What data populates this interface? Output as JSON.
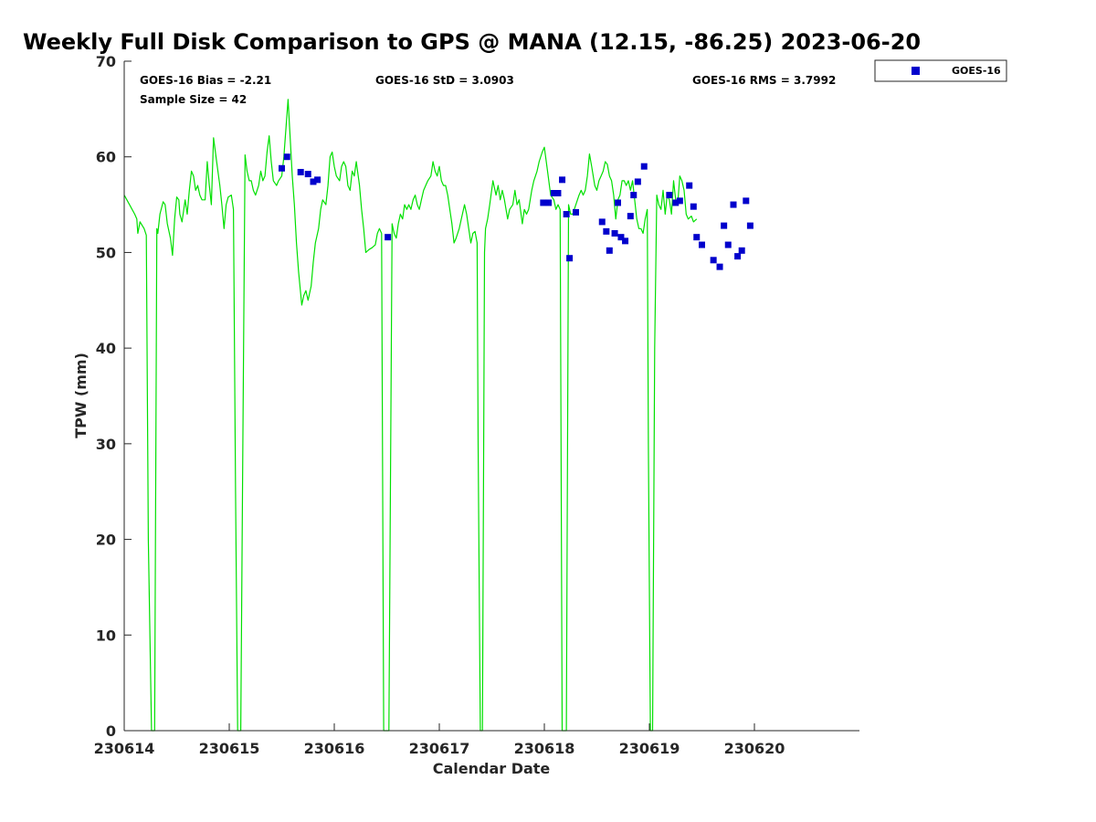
{
  "chart_data": {
    "type": "scatter",
    "title": "Weekly Full Disk Comparison to GPS @ MANA (12.15, -86.25) 2023-06-20",
    "xlabel": "Calendar Date",
    "ylabel": "TPW (mm)",
    "xlim": [
      0,
      7
    ],
    "ylim": [
      0,
      70
    ],
    "x_ticks": [
      {
        "value": 0,
        "label": "230614"
      },
      {
        "value": 1,
        "label": "230615"
      },
      {
        "value": 2,
        "label": "230616"
      },
      {
        "value": 3,
        "label": "230617"
      },
      {
        "value": 4,
        "label": "230618"
      },
      {
        "value": 5,
        "label": "230619"
      },
      {
        "value": 6,
        "label": "230620"
      }
    ],
    "y_ticks": [
      0,
      10,
      20,
      30,
      40,
      50,
      60,
      70
    ],
    "stats": {
      "bias": "GOES-16 Bias = -2.21",
      "std": "GOES-16 StD = 3.0903",
      "rms": "GOES-16 RMS = 3.7992",
      "sample": "Sample Size = 42"
    },
    "legend": {
      "position": "top-right-outside",
      "entries": [
        {
          "name": "GOES-16",
          "color": "#0000cc",
          "marker": "square"
        }
      ]
    },
    "gps_line_color": "#00e000",
    "gps_series": [
      [
        0.0,
        56.0
      ],
      [
        0.05,
        55.0
      ],
      [
        0.1,
        54.0
      ],
      [
        0.12,
        53.5
      ],
      [
        0.13,
        52.0
      ],
      [
        0.15,
        53.2
      ],
      [
        0.19,
        52.5
      ],
      [
        0.21,
        51.8
      ],
      [
        0.23,
        20.0
      ],
      [
        0.26,
        0
      ],
      [
        0.29,
        0
      ],
      [
        0.31,
        52.5
      ],
      [
        0.32,
        52.0
      ],
      [
        0.34,
        54.0
      ],
      [
        0.37,
        55.3
      ],
      [
        0.39,
        55.0
      ],
      [
        0.41,
        53.0
      ],
      [
        0.44,
        51.5
      ],
      [
        0.46,
        49.7
      ],
      [
        0.48,
        53.5
      ],
      [
        0.5,
        55.8
      ],
      [
        0.52,
        55.5
      ],
      [
        0.53,
        54.0
      ],
      [
        0.55,
        53.2
      ],
      [
        0.58,
        55.5
      ],
      [
        0.6,
        54.0
      ],
      [
        0.62,
        56.5
      ],
      [
        0.64,
        58.5
      ],
      [
        0.66,
        58.0
      ],
      [
        0.68,
        56.5
      ],
      [
        0.7,
        57.0
      ],
      [
        0.72,
        56.0
      ],
      [
        0.74,
        55.5
      ],
      [
        0.77,
        55.5
      ],
      [
        0.79,
        59.5
      ],
      [
        0.81,
        57.0
      ],
      [
        0.83,
        55.0
      ],
      [
        0.85,
        62.0
      ],
      [
        0.88,
        59.5
      ],
      [
        0.91,
        57.0
      ],
      [
        0.93,
        55.0
      ],
      [
        0.95,
        52.5
      ],
      [
        0.97,
        55.0
      ],
      [
        0.99,
        55.8
      ],
      [
        1.02,
        56.0
      ],
      [
        1.04,
        54.5
      ],
      [
        1.06,
        25.0
      ],
      [
        1.08,
        0
      ],
      [
        1.11,
        0
      ],
      [
        1.13,
        30.0
      ],
      [
        1.15,
        60.2
      ],
      [
        1.17,
        58.5
      ],
      [
        1.19,
        57.5
      ],
      [
        1.21,
        57.5
      ],
      [
        1.23,
        56.5
      ],
      [
        1.25,
        56.0
      ],
      [
        1.28,
        57.0
      ],
      [
        1.3,
        58.5
      ],
      [
        1.32,
        57.5
      ],
      [
        1.34,
        58.0
      ],
      [
        1.36,
        60.5
      ],
      [
        1.38,
        62.2
      ],
      [
        1.4,
        59.5
      ],
      [
        1.42,
        57.5
      ],
      [
        1.45,
        57.0
      ],
      [
        1.47,
        57.5
      ],
      [
        1.5,
        58.0
      ],
      [
        1.52,
        60.0
      ],
      [
        1.54,
        63.0
      ],
      [
        1.56,
        66.0
      ],
      [
        1.58,
        62.0
      ],
      [
        1.6,
        58.0
      ],
      [
        1.62,
        55.0
      ],
      [
        1.64,
        51.0
      ],
      [
        1.66,
        48.0
      ],
      [
        1.69,
        44.5
      ],
      [
        1.71,
        45.5
      ],
      [
        1.73,
        46.0
      ],
      [
        1.75,
        45.0
      ],
      [
        1.78,
        46.5
      ],
      [
        1.8,
        49.0
      ],
      [
        1.82,
        51.0
      ],
      [
        1.85,
        52.5
      ],
      [
        1.87,
        54.5
      ],
      [
        1.89,
        55.5
      ],
      [
        1.92,
        55.0
      ],
      [
        1.94,
        57.0
      ],
      [
        1.96,
        60.0
      ],
      [
        1.98,
        60.5
      ],
      [
        2.0,
        59.0
      ],
      [
        2.02,
        58.0
      ],
      [
        2.05,
        57.5
      ],
      [
        2.07,
        59.0
      ],
      [
        2.09,
        59.5
      ],
      [
        2.11,
        59.0
      ],
      [
        2.13,
        57.0
      ],
      [
        2.15,
        56.5
      ],
      [
        2.17,
        58.5
      ],
      [
        2.19,
        58.0
      ],
      [
        2.21,
        59.5
      ],
      [
        2.24,
        57.0
      ],
      [
        2.26,
        54.5
      ],
      [
        2.28,
        52.5
      ],
      [
        2.3,
        50.0
      ],
      [
        2.33,
        50.3
      ],
      [
        2.36,
        50.5
      ],
      [
        2.39,
        50.8
      ],
      [
        2.41,
        52.0
      ],
      [
        2.43,
        52.5
      ],
      [
        2.45,
        52.0
      ],
      [
        2.47,
        0
      ],
      [
        2.52,
        0
      ],
      [
        2.55,
        53.0
      ],
      [
        2.57,
        52.0
      ],
      [
        2.59,
        51.5
      ],
      [
        2.61,
        53.0
      ],
      [
        2.63,
        54.0
      ],
      [
        2.65,
        53.5
      ],
      [
        2.67,
        55.0
      ],
      [
        2.69,
        54.5
      ],
      [
        2.71,
        55.0
      ],
      [
        2.73,
        54.5
      ],
      [
        2.75,
        55.5
      ],
      [
        2.77,
        56.0
      ],
      [
        2.79,
        55.0
      ],
      [
        2.81,
        54.5
      ],
      [
        2.83,
        55.5
      ],
      [
        2.85,
        56.5
      ],
      [
        2.87,
        57.0
      ],
      [
        2.89,
        57.5
      ],
      [
        2.92,
        58.0
      ],
      [
        2.94,
        59.5
      ],
      [
        2.96,
        58.5
      ],
      [
        2.98,
        58.0
      ],
      [
        3.0,
        59.0
      ],
      [
        3.02,
        57.5
      ],
      [
        3.04,
        57.0
      ],
      [
        3.06,
        57.0
      ],
      [
        3.08,
        56.0
      ],
      [
        3.1,
        54.5
      ],
      [
        3.12,
        53.0
      ],
      [
        3.14,
        51.0
      ],
      [
        3.16,
        51.5
      ],
      [
        3.19,
        52.5
      ],
      [
        3.21,
        53.5
      ],
      [
        3.24,
        55.0
      ],
      [
        3.26,
        54.0
      ],
      [
        3.28,
        52.5
      ],
      [
        3.3,
        51.0
      ],
      [
        3.32,
        52.0
      ],
      [
        3.34,
        52.2
      ],
      [
        3.36,
        51.0
      ],
      [
        3.37,
        30.0
      ],
      [
        3.39,
        0
      ],
      [
        3.41,
        0
      ],
      [
        3.43,
        50.0
      ],
      [
        3.44,
        52.5
      ],
      [
        3.46,
        53.5
      ],
      [
        3.48,
        55.0
      ],
      [
        3.51,
        57.5
      ],
      [
        3.54,
        56.0
      ],
      [
        3.56,
        57.0
      ],
      [
        3.58,
        55.5
      ],
      [
        3.6,
        56.5
      ],
      [
        3.62,
        55.5
      ],
      [
        3.65,
        53.5
      ],
      [
        3.67,
        54.5
      ],
      [
        3.7,
        55.0
      ],
      [
        3.72,
        56.5
      ],
      [
        3.74,
        55.0
      ],
      [
        3.76,
        55.5
      ],
      [
        3.79,
        53.0
      ],
      [
        3.81,
        54.5
      ],
      [
        3.83,
        54.0
      ],
      [
        3.85,
        54.5
      ],
      [
        3.88,
        56.5
      ],
      [
        3.9,
        57.5
      ],
      [
        3.93,
        58.5
      ],
      [
        3.95,
        59.5
      ],
      [
        3.98,
        60.5
      ],
      [
        4.0,
        61.0
      ],
      [
        4.03,
        58.5
      ],
      [
        4.06,
        56.0
      ],
      [
        4.09,
        55.5
      ],
      [
        4.11,
        54.5
      ],
      [
        4.13,
        55.0
      ],
      [
        4.15,
        54.5
      ],
      [
        4.17,
        0
      ],
      [
        4.21,
        0
      ],
      [
        4.23,
        55.0
      ],
      [
        4.25,
        54.0
      ],
      [
        4.27,
        54.0
      ],
      [
        4.3,
        55.0
      ],
      [
        4.33,
        56.0
      ],
      [
        4.35,
        56.5
      ],
      [
        4.37,
        56.0
      ],
      [
        4.39,
        56.5
      ],
      [
        4.41,
        58.0
      ],
      [
        4.43,
        60.3
      ],
      [
        4.45,
        59.0
      ],
      [
        4.48,
        57.0
      ],
      [
        4.5,
        56.5
      ],
      [
        4.52,
        57.5
      ],
      [
        4.54,
        58.0
      ],
      [
        4.56,
        58.5
      ],
      [
        4.58,
        59.5
      ],
      [
        4.6,
        59.2
      ],
      [
        4.62,
        58.0
      ],
      [
        4.64,
        57.5
      ],
      [
        4.66,
        56.0
      ],
      [
        4.68,
        53.5
      ],
      [
        4.7,
        55.5
      ],
      [
        4.72,
        56.0
      ],
      [
        4.74,
        57.5
      ],
      [
        4.76,
        57.5
      ],
      [
        4.78,
        57.0
      ],
      [
        4.8,
        57.5
      ],
      [
        4.82,
        56.5
      ],
      [
        4.84,
        57.5
      ],
      [
        4.86,
        55.5
      ],
      [
        4.88,
        53.5
      ],
      [
        4.9,
        52.5
      ],
      [
        4.92,
        52.5
      ],
      [
        4.94,
        52.0
      ],
      [
        4.96,
        53.5
      ],
      [
        4.98,
        54.5
      ],
      [
        4.99,
        30.0
      ],
      [
        5.01,
        0
      ],
      [
        5.03,
        0
      ],
      [
        5.05,
        40.0
      ],
      [
        5.07,
        56.0
      ],
      [
        5.09,
        55.0
      ],
      [
        5.11,
        54.5
      ],
      [
        5.13,
        56.5
      ],
      [
        5.15,
        54.0
      ],
      [
        5.17,
        56.0
      ],
      [
        5.19,
        55.5
      ],
      [
        5.21,
        54.0
      ],
      [
        5.23,
        57.5
      ],
      [
        5.25,
        55.5
      ],
      [
        5.27,
        55.0
      ],
      [
        5.29,
        58.0
      ],
      [
        5.31,
        57.5
      ],
      [
        5.33,
        56.5
      ],
      [
        5.35,
        54.0
      ],
      [
        5.37,
        53.5
      ],
      [
        5.4,
        53.8
      ],
      [
        5.42,
        53.2
      ],
      [
        5.45,
        53.5
      ]
    ],
    "goes16_points": [
      [
        1.5,
        58.8
      ],
      [
        1.55,
        60.0
      ],
      [
        1.68,
        58.4
      ],
      [
        1.75,
        58.2
      ],
      [
        1.8,
        57.4
      ],
      [
        1.84,
        57.6
      ],
      [
        2.51,
        51.6
      ],
      [
        3.99,
        55.2
      ],
      [
        4.04,
        55.2
      ],
      [
        4.09,
        56.2
      ],
      [
        4.13,
        56.2
      ],
      [
        4.17,
        57.6
      ],
      [
        4.21,
        54.0
      ],
      [
        4.24,
        49.4
      ],
      [
        4.3,
        54.2
      ],
      [
        4.55,
        53.2
      ],
      [
        4.59,
        52.2
      ],
      [
        4.62,
        50.2
      ],
      [
        4.67,
        52.0
      ],
      [
        4.7,
        55.2
      ],
      [
        4.73,
        51.6
      ],
      [
        4.77,
        51.2
      ],
      [
        4.82,
        53.8
      ],
      [
        4.85,
        56.0
      ],
      [
        4.89,
        57.4
      ],
      [
        4.95,
        59.0
      ],
      [
        5.19,
        56.0
      ],
      [
        5.25,
        55.2
      ],
      [
        5.29,
        55.4
      ],
      [
        5.38,
        57.0
      ],
      [
        5.42,
        54.8
      ],
      [
        5.45,
        51.6
      ],
      [
        5.5,
        50.8
      ],
      [
        5.61,
        49.2
      ],
      [
        5.67,
        48.5
      ],
      [
        5.71,
        52.8
      ],
      [
        5.75,
        50.8
      ],
      [
        5.8,
        55.0
      ],
      [
        5.84,
        49.6
      ],
      [
        5.88,
        50.2
      ],
      [
        5.92,
        55.4
      ],
      [
        5.96,
        52.8
      ]
    ]
  }
}
